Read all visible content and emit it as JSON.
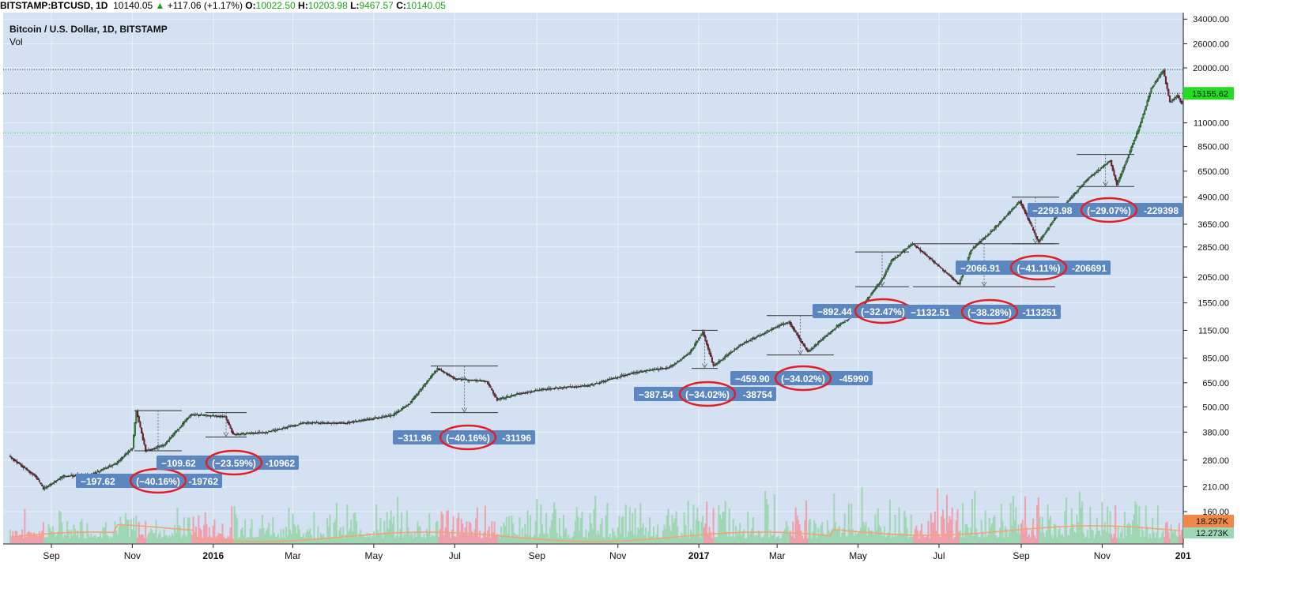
{
  "header": {
    "symbol": "BITSTAMP:BTCUSD, 1D",
    "last": "10140.05",
    "change": "+117.06 (+1.17%)",
    "o_label": "O:",
    "o_value": "10022.50",
    "h_label": "H:",
    "h_value": "10203.98",
    "l_label": "L:",
    "l_value": "9467.57",
    "c_label": "C:",
    "c_value": "10140.05"
  },
  "legend": {
    "title": "Bitcoin / U.S. Dollar, 1D, BITSTAMP",
    "vol": "Vol"
  },
  "colors": {
    "background": "#d3e1f2",
    "grid": "#eaf1f9",
    "up": "#2c8f2c",
    "down": "#8b1c2c",
    "label_box": "#5b86c0",
    "ellipse": "#e31e24",
    "vol_ma": "#f5a36a",
    "vol_up": "#9fd6b3",
    "vol_down": "#f0a0aa",
    "badge_green": "#22dd22",
    "badge_orange": "#f0884a"
  },
  "chart_data": {
    "type": "candlestick",
    "title": "Bitcoin / U.S. Dollar, 1D, BITSTAMP",
    "y_scale": "log",
    "y_ticks": [
      "34000.00",
      "26000.00",
      "20000.00",
      "15155.62",
      "11000.00",
      "8500.00",
      "6500.00",
      "4900.00",
      "3650.00",
      "2850.00",
      "2050.00",
      "1550.00",
      "1150.00",
      "850.00",
      "650.00",
      "500.00",
      "380.00",
      "280.00",
      "210.00",
      "160.00"
    ],
    "y_tick_values": [
      34000,
      26000,
      20000,
      15155.62,
      11000,
      8500,
      6500,
      4900,
      3650,
      2850,
      2050,
      1550,
      1150,
      850,
      650,
      500,
      380,
      280,
      210,
      160
    ],
    "x_ticks": [
      "Sep",
      "Nov",
      "2016",
      "Mar",
      "May",
      "Jul",
      "Sep",
      "Nov",
      "2017",
      "Mar",
      "May",
      "Jul",
      "Sep",
      "Nov",
      "201"
    ],
    "x_tick_dates": [
      "2015-09-01",
      "2015-11-01",
      "2016-01-01",
      "2016-03-01",
      "2016-05-01",
      "2016-07-01",
      "2016-09-01",
      "2016-11-01",
      "2017-01-01",
      "2017-03-01",
      "2017-05-01",
      "2017-07-01",
      "2017-09-01",
      "2017-11-01",
      "2018-01-01"
    ],
    "price_path": [
      [
        "2015-08-01",
        290
      ],
      [
        "2015-08-20",
        235
      ],
      [
        "2015-08-26",
        205
      ],
      [
        "2015-09-10",
        235
      ],
      [
        "2015-10-01",
        240
      ],
      [
        "2015-10-20",
        270
      ],
      [
        "2015-11-01",
        320
      ],
      [
        "2015-11-04",
        480
      ],
      [
        "2015-11-11",
        310
      ],
      [
        "2015-11-25",
        330
      ],
      [
        "2015-12-15",
        460
      ],
      [
        "2016-01-10",
        450
      ],
      [
        "2016-01-16",
        370
      ],
      [
        "2016-02-10",
        380
      ],
      [
        "2016-03-10",
        420
      ],
      [
        "2016-04-10",
        420
      ],
      [
        "2016-05-15",
        455
      ],
      [
        "2016-05-28",
        520
      ],
      [
        "2016-06-18",
        760
      ],
      [
        "2016-07-01",
        680
      ],
      [
        "2016-07-25",
        660
      ],
      [
        "2016-08-02",
        540
      ],
      [
        "2016-08-20",
        580
      ],
      [
        "2016-09-10",
        610
      ],
      [
        "2016-10-10",
        630
      ],
      [
        "2016-11-10",
        720
      ],
      [
        "2016-12-10",
        770
      ],
      [
        "2016-12-25",
        900
      ],
      [
        "2017-01-04",
        1130
      ],
      [
        "2017-01-12",
        780
      ],
      [
        "2017-02-01",
        980
      ],
      [
        "2017-02-28",
        1190
      ],
      [
        "2017-03-10",
        1260
      ],
      [
        "2017-03-24",
        910
      ],
      [
        "2017-04-15",
        1200
      ],
      [
        "2017-05-01",
        1400
      ],
      [
        "2017-05-20",
        2050
      ],
      [
        "2017-05-26",
        2450
      ],
      [
        "2017-06-11",
        2950
      ],
      [
        "2017-06-20",
        2650
      ],
      [
        "2017-07-16",
        1900
      ],
      [
        "2017-07-25",
        2750
      ],
      [
        "2017-08-10",
        3400
      ],
      [
        "2017-08-31",
        4700
      ],
      [
        "2017-09-14",
        3000
      ],
      [
        "2017-10-01",
        4300
      ],
      [
        "2017-10-20",
        5900
      ],
      [
        "2017-11-07",
        7300
      ],
      [
        "2017-11-12",
        5600
      ],
      [
        "2017-11-29",
        10500
      ],
      [
        "2017-12-08",
        16000
      ],
      [
        "2017-12-17",
        19500
      ],
      [
        "2017-12-22",
        13800
      ],
      [
        "2017-12-28",
        14800
      ],
      [
        "2017-12-31",
        13500
      ]
    ],
    "last_price": 15155.62,
    "reference_lines": [
      19666,
      15155.62,
      9867
    ],
    "annotations": [
      {
        "left": "−197.62",
        "pct": "(−40.16%)",
        "right": "-19762"
      },
      {
        "left": "−109.62",
        "pct": "(−23.59%)",
        "right": "-10962"
      },
      {
        "left": "−311.96",
        "pct": "(−40.16%)",
        "right": "-31196"
      },
      {
        "left": "−387.54",
        "pct": "(−34.02%)",
        "right": "-38754"
      },
      {
        "left": "−459.90",
        "pct": "(−34.02%)",
        "right": "-45990"
      },
      {
        "left": "−892.44",
        "pct": "(−32.47%)",
        "right": ""
      },
      {
        "left": "−1132.51",
        "pct": "(−38.28%)",
        "right": "-113251"
      },
      {
        "left": "−2066.91",
        "pct": "(−41.11%)",
        "right": "-206691"
      },
      {
        "left": "−2293.98",
        "pct": "(−29.07%)",
        "right": "-229398"
      }
    ],
    "volume": {
      "ma_last": "18.297K",
      "last": "12.273K"
    }
  }
}
